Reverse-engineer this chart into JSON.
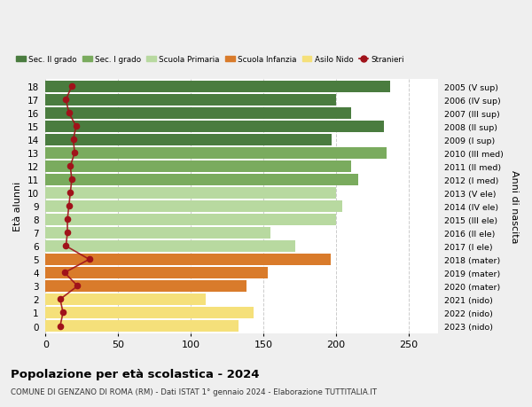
{
  "ages": [
    0,
    1,
    2,
    3,
    4,
    5,
    6,
    7,
    8,
    9,
    10,
    11,
    12,
    13,
    14,
    15,
    16,
    17,
    18
  ],
  "years": [
    "2023 (nido)",
    "2022 (nido)",
    "2021 (nido)",
    "2020 (mater)",
    "2019 (mater)",
    "2018 (mater)",
    "2017 (I ele)",
    "2016 (II ele)",
    "2015 (III ele)",
    "2014 (IV ele)",
    "2013 (V ele)",
    "2012 (I med)",
    "2011 (II med)",
    "2010 (III med)",
    "2009 (I sup)",
    "2008 (II sup)",
    "2007 (III sup)",
    "2006 (IV sup)",
    "2005 (V sup)"
  ],
  "bar_values": [
    133,
    143,
    110,
    138,
    153,
    196,
    172,
    155,
    200,
    204,
    200,
    215,
    210,
    235,
    197,
    233,
    210,
    200,
    237
  ],
  "bar_colors": [
    "#f5e07a",
    "#f5e07a",
    "#f5e07a",
    "#d97b2b",
    "#d97b2b",
    "#d97b2b",
    "#b8d9a0",
    "#b8d9a0",
    "#b8d9a0",
    "#b8d9a0",
    "#b8d9a0",
    "#7aab5e",
    "#7aab5e",
    "#7aab5e",
    "#4a7c3f",
    "#4a7c3f",
    "#4a7c3f",
    "#4a7c3f",
    "#4a7c3f"
  ],
  "stranieri_values": [
    10,
    12,
    10,
    22,
    13,
    30,
    14,
    15,
    15,
    16,
    17,
    18,
    17,
    20,
    19,
    21,
    16,
    14,
    18
  ],
  "stranieri_color": "#a0121a",
  "legend_labels": [
    "Sec. II grado",
    "Sec. I grado",
    "Scuola Primaria",
    "Scuola Infanzia",
    "Asilo Nido",
    "Stranieri"
  ],
  "legend_colors": [
    "#4a7c3f",
    "#7aab5e",
    "#b8d9a0",
    "#d97b2b",
    "#f5e07a",
    "#a0121a"
  ],
  "ylabel_left": "Età alunni",
  "ylabel_right": "Anni di nascita",
  "title": "Popolazione per età scolastica - 2024",
  "subtitle": "COMUNE DI GENZANO DI ROMA (RM) - Dati ISTAT 1° gennaio 2024 - Elaborazione TUTTITALIA.IT",
  "xlim": [
    0,
    270
  ],
  "bg_color": "#efefef",
  "bar_bg_color": "#ffffff",
  "grid_color": "#cccccc"
}
